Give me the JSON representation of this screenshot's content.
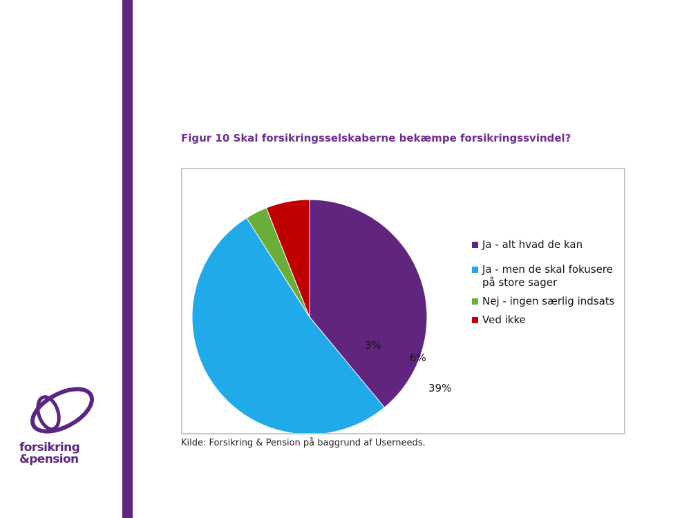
{
  "figure": {
    "title": "Figur 10 Skal forsikringsselskaberne bekæmpe forsikringssvindel?",
    "source": "Kilde: Forsikring & Pension på baggrund af Userneeds."
  },
  "logo": {
    "line1": "forsikring",
    "line2": "&pension"
  },
  "colors": {
    "brand_purple": "#61267f",
    "title_purple": "#6b2e91"
  },
  "chart_data": {
    "type": "pie",
    "slices": [
      {
        "label": "Ja - alt hvad de kan",
        "value": 39,
        "display": "39%",
        "color": "#612580"
      },
      {
        "label": "Ja - men de skal fokusere på store sager",
        "value": 52,
        "display": "52%",
        "color": "#20aaea"
      },
      {
        "label": "Nej - ingen særlig indsats",
        "value": 3,
        "display": "3%",
        "color": "#6aae3a"
      },
      {
        "label": "Ved ikke",
        "value": 6,
        "display": "6%",
        "color": "#c00000"
      }
    ],
    "legend_position": "right"
  }
}
